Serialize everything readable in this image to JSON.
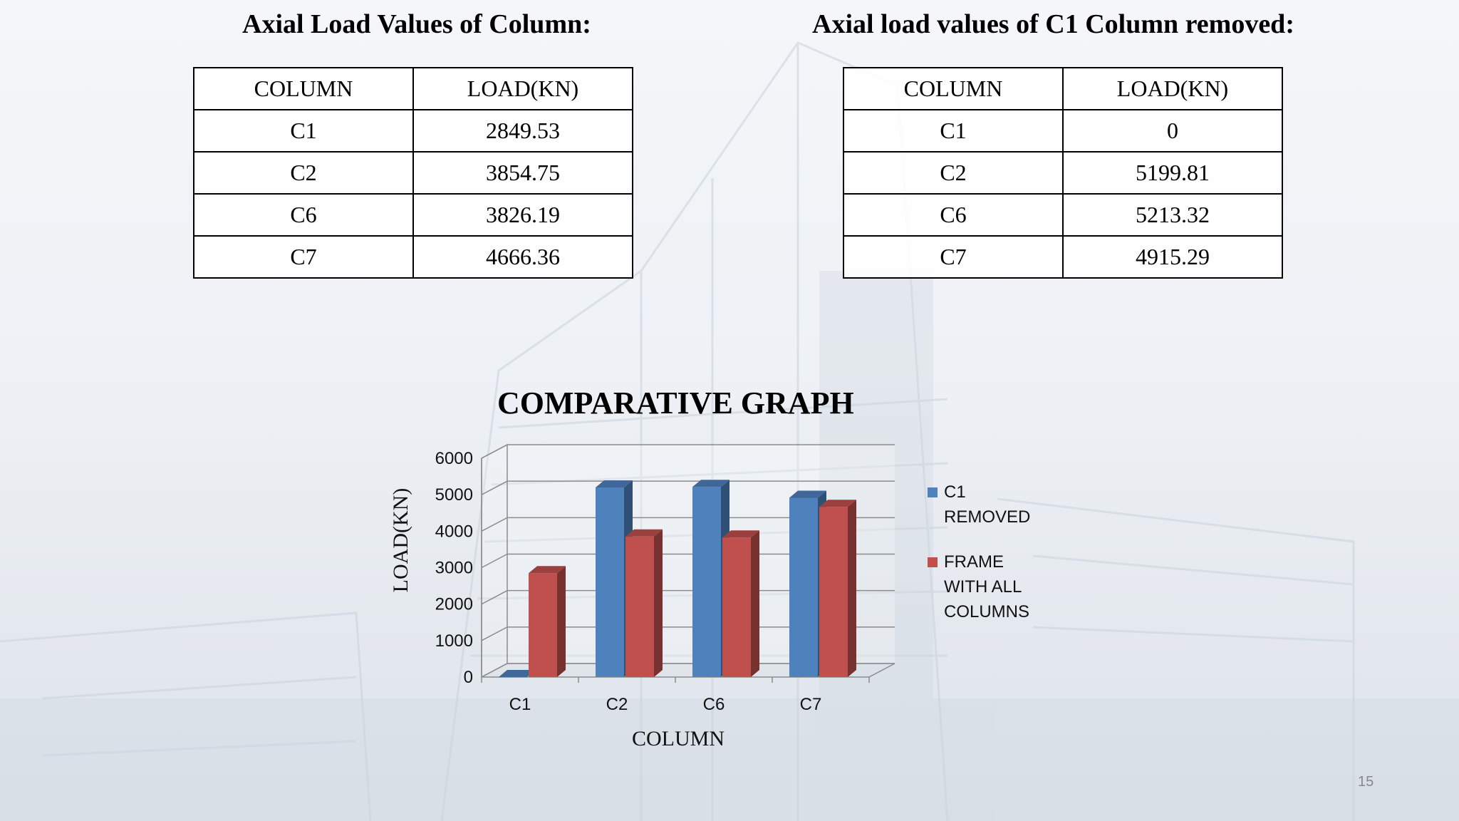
{
  "left_table": {
    "title": "Axial Load Values of Column:",
    "headers": [
      "COLUMN",
      "LOAD(KN)"
    ],
    "rows": [
      [
        "C1",
        "2849.53"
      ],
      [
        "C2",
        "3854.75"
      ],
      [
        "C6",
        "3826.19"
      ],
      [
        "C7",
        "4666.36"
      ]
    ]
  },
  "right_table": {
    "title": "Axial load values of C1  Column removed:",
    "headers": [
      "COLUMN",
      "LOAD(KN)"
    ],
    "rows": [
      [
        "C1",
        "0"
      ],
      [
        "C2",
        "5199.81"
      ],
      [
        "C6",
        "5213.32"
      ],
      [
        "C7",
        "4915.29"
      ]
    ]
  },
  "chart_data": {
    "type": "bar",
    "title": "COMPARATIVE GRAPH",
    "xlabel": "COLUMN",
    "ylabel": "LOAD(KN)",
    "categories": [
      "C1",
      "C2",
      "C6",
      "C7"
    ],
    "ylim": [
      0,
      6000
    ],
    "yticks": [
      "0",
      "1000",
      "2000",
      "3000",
      "4000",
      "5000",
      "6000"
    ],
    "grid": true,
    "legend_position": "right",
    "series": [
      {
        "name": "C1 REMOVED",
        "legend_lines": [
          "C1",
          "REMOVED"
        ],
        "color": "#4f81bd",
        "values": [
          0,
          5199.81,
          5213.32,
          4915.29
        ]
      },
      {
        "name": "FRAME WITH ALL COLUMNS",
        "legend_lines": [
          "FRAME",
          "WITH ALL",
          "COLUMNS"
        ],
        "color": "#c0504d",
        "values": [
          2849.53,
          3854.75,
          3826.19,
          4666.36
        ]
      }
    ]
  },
  "page_number": "15"
}
